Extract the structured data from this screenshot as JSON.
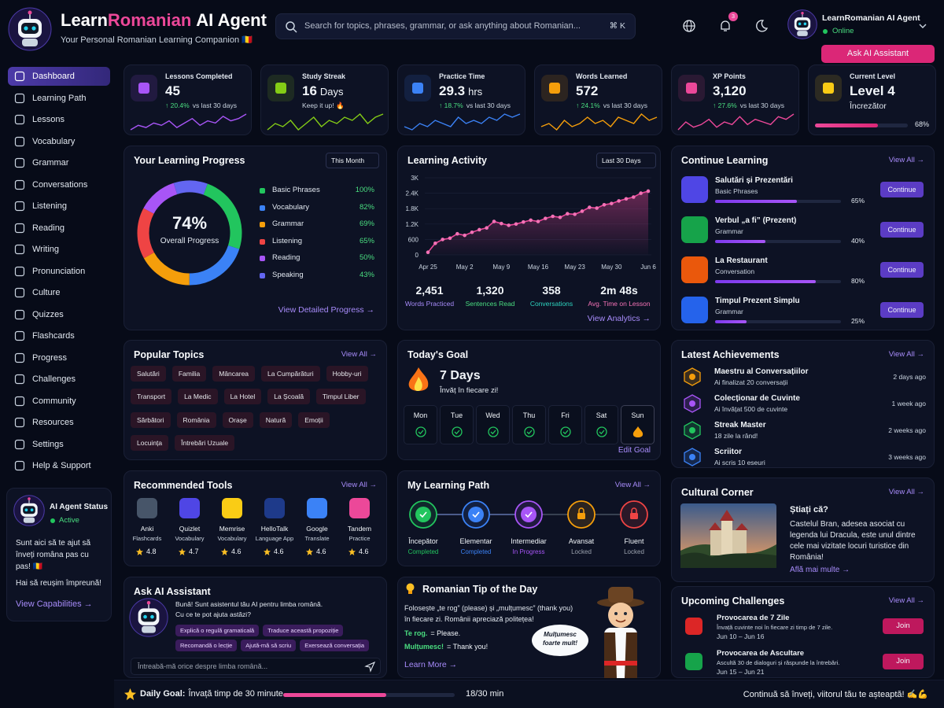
{
  "header": {
    "brand": [
      "Learn",
      "Romanian",
      "AI Agent"
    ],
    "subtitle": "Your Personal Romanian Learning Companion 🇷🇴",
    "search": "Search for topics, phrases, grammar, or ask anything about Romanian...",
    "shortcut": "⌘ K",
    "notifications": "3",
    "user": "LearnRomanian AI Agent",
    "status": "Online",
    "ask_button": "Ask AI Assistant"
  },
  "nav": [
    "Dashboard",
    "Learning Path",
    "Lessons",
    "Vocabulary",
    "Grammar",
    "Conversations",
    "Listening",
    "Reading",
    "Writing",
    "Pronunciation",
    "Culture",
    "Quizzes",
    "Flashcards",
    "Progress",
    "Challenges",
    "Community",
    "Resources",
    "Settings",
    "Help & Support"
  ],
  "nav_active": 0,
  "agent_status": {
    "title": "AI Agent Status",
    "status": "Active",
    "text": "Sunt aici să te ajut să înveți româna pas cu pas! 🇷🇴",
    "cheer": "Hai să reușim împreună!",
    "link": "View Capabilities →"
  },
  "stats": [
    {
      "label": "Lessons Completed",
      "value": "45",
      "change": "↑ 20.4%",
      "note": "vs last 30 days",
      "color": "#a855f7",
      "trend": [
        3,
        5,
        4,
        6,
        5,
        7,
        4,
        6,
        8,
        5,
        7,
        6,
        9,
        7,
        8,
        10
      ]
    },
    {
      "label": "Study Streak",
      "value": "16",
      "unit": "Days",
      "note": "Keep it up! 🔥",
      "color": "#84cc16",
      "trend": [
        4,
        6,
        5,
        7,
        4,
        6,
        8,
        5,
        7,
        6,
        8,
        7,
        9,
        6,
        8,
        9
      ]
    },
    {
      "label": "Practice Time",
      "value": "29.3",
      "unit": "hrs",
      "change": "↑ 18.7%",
      "note": "vs last 30 days",
      "color": "#3b82f6",
      "trend": [
        5,
        4,
        6,
        5,
        7,
        6,
        5,
        8,
        6,
        7,
        6,
        8,
        7,
        9,
        8,
        9
      ]
    },
    {
      "label": "Words Learned",
      "value": "572",
      "change": "↑ 24.1%",
      "note": "vs last 30 days",
      "color": "#f59e0b",
      "trend": [
        5,
        6,
        4,
        7,
        5,
        6,
        8,
        6,
        7,
        5,
        8,
        7,
        6,
        9,
        7,
        8
      ]
    },
    {
      "label": "XP Points",
      "value": "3,120",
      "change": "↑ 27.6%",
      "note": "vs last 30 days",
      "color": "#ec4899",
      "trend": [
        4,
        7,
        5,
        6,
        8,
        5,
        7,
        6,
        9,
        6,
        8,
        7,
        6,
        9,
        8,
        10
      ]
    },
    {
      "label": "Current Level",
      "value": "Level 4",
      "note": "Încrezător",
      "color": "#facc15",
      "progress": {
        "value": 68,
        "label": "68%"
      }
    }
  ],
  "progress": {
    "title": "Your Learning Progress",
    "period": "This Month",
    "overall": "74%",
    "overall_label": "Overall Progress",
    "link": "View Detailed Progress →",
    "skills": [
      {
        "name": "Basic Phrases",
        "value": 100,
        "label": "100%",
        "color": "#22c55e"
      },
      {
        "name": "Vocabulary",
        "value": 82,
        "label": "82%",
        "color": "#3b82f6"
      },
      {
        "name": "Grammar",
        "value": 69,
        "label": "69%",
        "color": "#f59e0b"
      },
      {
        "name": "Listening",
        "value": 65,
        "label": "65%",
        "color": "#ef4444"
      },
      {
        "name": "Reading",
        "value": 50,
        "label": "50%",
        "color": "#a855f7"
      },
      {
        "name": "Speaking",
        "value": 43,
        "label": "43%",
        "color": "#6366f1"
      }
    ]
  },
  "activity": {
    "title": "Learning Activity",
    "period": "Last 30 Days",
    "link": "View Analytics →",
    "summary": [
      {
        "value": "2,451",
        "label": "Words Practiced",
        "color": "#a78bfa"
      },
      {
        "value": "1,320",
        "label": "Sentences Read",
        "color": "#4ade80"
      },
      {
        "value": "358",
        "label": "Conversations",
        "color": "#2dd4bf"
      },
      {
        "value": "2m 48s",
        "label": "Avg. Time on Lesson",
        "color": "#f472b6"
      }
    ]
  },
  "chart_data": {
    "type": "line",
    "color": "#ec4899",
    "grid": true,
    "categories": [
      "Apr 25",
      null,
      null,
      null,
      null,
      "May 2",
      null,
      null,
      null,
      null,
      "May 9",
      null,
      null,
      null,
      null,
      "May 16",
      null,
      null,
      null,
      null,
      "May 23",
      null,
      null,
      null,
      null,
      "May 30",
      null,
      null,
      null,
      null,
      "Jun 6"
    ],
    "values": [
      100,
      450,
      600,
      650,
      820,
      760,
      880,
      980,
      1050,
      1300,
      1220,
      1150,
      1200,
      1280,
      1350,
      1300,
      1420,
      1500,
      1460,
      1600,
      1580,
      1700,
      1850,
      1820,
      1950,
      2000,
      2100,
      2180,
      2250,
      2400,
      2480
    ],
    "ylim": [
      0,
      3000
    ],
    "yticks": [
      0,
      600,
      {
        "value": 1200,
        "label": "1.2K"
      },
      {
        "value": 1800,
        "label": "1.8K"
      },
      {
        "value": 2400,
        "label": "2.4K"
      },
      {
        "value": 3000,
        "label": "3K"
      }
    ]
  },
  "continue": {
    "title": "Continue Learning",
    "link": "View All →",
    "button": "Continue",
    "items": [
      {
        "name": "Salutări și Prezentări",
        "category": "Basic Phrases",
        "progress": {
          "value": 65,
          "label": "65%"
        },
        "color": "#4f46e5"
      },
      {
        "name": "Verbul „a fi” (Prezent)",
        "category": "Grammar",
        "progress": {
          "value": 40,
          "label": "40%"
        },
        "color": "#16a34a"
      },
      {
        "name": "La Restaurant",
        "category": "Conversation",
        "progress": {
          "value": 80,
          "label": "80%"
        },
        "color": "#ea580c"
      },
      {
        "name": "Timpul Prezent Simplu",
        "category": "Grammar",
        "progress": {
          "value": 25,
          "label": "25%"
        },
        "color": "#2563eb"
      }
    ]
  },
  "topics": {
    "title": "Popular Topics",
    "link": "View All →",
    "tags": [
      [
        "Salutări",
        "Familia",
        "Mâncarea",
        "La Cumpărături",
        "Hobby-uri"
      ],
      [
        "Transport",
        "La Medic",
        "La Hotel",
        "La Școală",
        "Timpul Liber"
      ],
      [
        "Sărbători",
        "România",
        "Orașe",
        "Natură",
        "Emoții"
      ],
      [
        "Locuința",
        "Întrebări Uzuale"
      ]
    ]
  },
  "goal": {
    "title": "Today's Goal",
    "streak": "7 Days",
    "text": "Învăț în fiecare zi!",
    "days": [
      "Mon",
      "Tue",
      "Wed",
      "Thu",
      "Fri",
      "Sat",
      "Sun"
    ],
    "today_index": 6,
    "link": "Edit Goal"
  },
  "achievements": {
    "title": "Latest Achievements",
    "link": "View All →",
    "items": [
      {
        "name": "Maestru al Conversațiilor",
        "desc": "Ai finalizat 20 conversații",
        "time": "2 days ago",
        "color": "#f59e0b"
      },
      {
        "name": "Colecționar de Cuvinte",
        "desc": "Ai învățat 500 de cuvinte",
        "time": "1 week ago",
        "color": "#a855f7"
      },
      {
        "name": "Streak Master",
        "desc": "18 zile la rând!",
        "time": "2 weeks ago",
        "color": "#22c55e"
      },
      {
        "name": "Scriitor",
        "desc": "Ai scris 10 eseuri",
        "time": "3 weeks ago",
        "color": "#3b82f6"
      }
    ]
  },
  "tools": {
    "title": "Recommended Tools",
    "link": "View All →",
    "items": [
      {
        "name": "Anki",
        "category": "Flashcards",
        "rating": "4.8",
        "color": "#475569"
      },
      {
        "name": "Quizlet",
        "category": "Vocabulary",
        "rating": "4.7",
        "color": "#4f46e5"
      },
      {
        "name": "Memrise",
        "category": "Vocabulary",
        "rating": "4.6",
        "color": "#facc15"
      },
      {
        "name": "HelloTalk",
        "category": "Language App",
        "rating": "4.6",
        "color": "#1e3a8a"
      },
      {
        "name": "Google",
        "category": "Translate",
        "rating": "4.6",
        "color": "#3b82f6"
      },
      {
        "name": "Tandem",
        "category": "Practice",
        "rating": "4.6",
        "color": "#ec4899"
      }
    ]
  },
  "path": {
    "title": "My Learning Path",
    "link": "View All →",
    "steps": [
      {
        "name": "Începător",
        "status": "Completed",
        "color": "#22c55e",
        "locked": false
      },
      {
        "name": "Elementar",
        "status": "Completed",
        "color": "#3b82f6",
        "locked": false
      },
      {
        "name": "Intermediar",
        "status": "In Progress",
        "color": "#a855f7",
        "locked": false
      },
      {
        "name": "Avansat",
        "status": "Locked",
        "color": "#f59e0b",
        "locked": true
      },
      {
        "name": "Fluent",
        "status": "Locked",
        "color": "#ef4444",
        "locked": true
      }
    ]
  },
  "culture": {
    "title": "Cultural Corner",
    "link": "View All →",
    "heading": "Știați că?",
    "text": "Castelul Bran, adesea asociat cu legenda lui Dracula, este unul dintre cele mai vizitate locuri turistice din România!",
    "more": "Află mai multe →"
  },
  "assistant": {
    "title": "Ask AI Assistant",
    "message": "Bună! Sunt asistentul tău AI pentru limba română. Cu ce te pot ajuta astăzi?",
    "suggestions": [
      "Explică o regulă gramaticală",
      "Traduce această propoziție",
      "Recomandă o lecție",
      "Ajută-mă să scriu",
      "Exersează conversația"
    ],
    "placeholder": "Întreabă-mă orice despre limba română..."
  },
  "tip": {
    "title": "Romanian Tip of the Day",
    "text": "Folosește „te rog” (please) și „mulțumesc” (thank you) în fiecare zi. Românii apreciază politețea!",
    "phrases": [
      {
        "ro": "Te rog.",
        "en": "= Please."
      },
      {
        "ro": "Mulțumesc!",
        "en": "= Thank you!"
      }
    ],
    "link": "Learn More →",
    "bubble": "Mulțumesc foarte mult!"
  },
  "challenges": {
    "title": "Upcoming Challenges",
    "link": "View All →",
    "button": "Join",
    "items": [
      {
        "name": "Provocarea de 7 Zile",
        "desc": "Învață cuvinte noi în fiecare zi timp de 7 zile.",
        "dates": "Jun 10 – Jun 16",
        "color": "#dc2626"
      },
      {
        "name": "Provocarea de Ascultare",
        "desc": "Ascultă 30 de dialoguri și răspunde la întrebări.",
        "dates": "Jun 15 – Jun 21",
        "color": "#16a34a"
      }
    ]
  },
  "footer": {
    "label": "Daily Goal:",
    "goal": "Învață timp de 30 minute",
    "progress": {
      "done": 18,
      "total": 30,
      "label": "18/30 min"
    },
    "motto": "Continuă să înveți, viitorul tău te așteaptă! ✍️💪"
  }
}
